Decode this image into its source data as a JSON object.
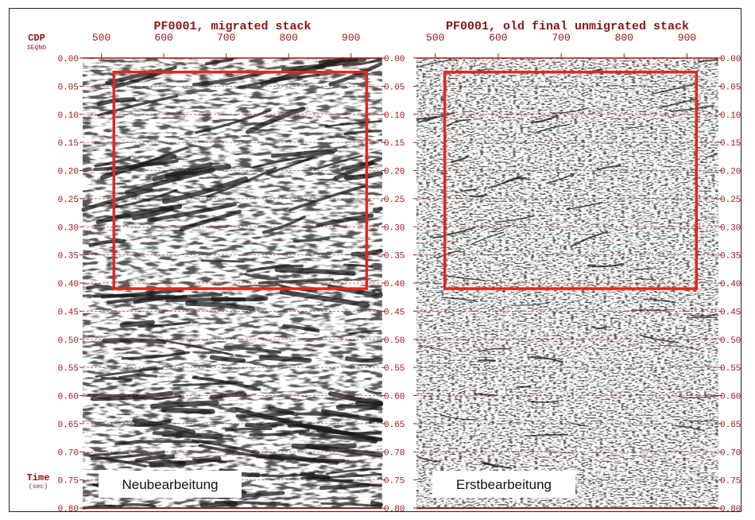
{
  "chart_data": [
    {
      "type": "heatmap",
      "title": "PF0001, migrated stack",
      "caption": "Neubearbeitung",
      "xlabel": "CDP",
      "xlabel_sub": "SEQNO",
      "ylabel": "Time",
      "ylabel_sub": "(sec)",
      "xlim": [
        470,
        950
      ],
      "ylim": [
        0.0,
        0.8
      ],
      "x_ticks": [
        "500",
        "600",
        "700",
        "800",
        "900"
      ],
      "y_ticks": [
        "0.00",
        "0.05",
        "0.10",
        "0.15",
        "0.20",
        "0.25",
        "0.30",
        "0.35",
        "0.40",
        "0.45",
        "0.50",
        "0.55",
        "0.60",
        "0.65",
        "0.70",
        "0.75",
        "0.80"
      ],
      "highlight_box": {
        "x_range": [
          520,
          925
        ],
        "y_range": [
          0.025,
          0.41
        ]
      },
      "grid": true,
      "texture": "coarse"
    },
    {
      "type": "heatmap",
      "title": "PF0001, old final unmigrated stack",
      "caption": "Erstbearbeitung",
      "xlim": [
        470,
        950
      ],
      "ylim": [
        0.0,
        0.8
      ],
      "x_ticks": [
        "500",
        "600",
        "700",
        "800",
        "900"
      ],
      "y_ticks": [
        "0.00",
        "0.05",
        "0.10",
        "0.15",
        "0.20",
        "0.25",
        "0.30",
        "0.35",
        "0.40",
        "0.45",
        "0.50",
        "0.55",
        "0.60",
        "0.65",
        "0.70",
        "0.75",
        "0.80"
      ],
      "highlight_box": {
        "x_range": [
          515,
          915
        ],
        "y_range": [
          0.025,
          0.41
        ]
      },
      "grid": true,
      "texture": "fine"
    }
  ],
  "colors": {
    "axis": "#a01818",
    "tick_label": "#a01818",
    "title": "#8a1414",
    "highlight": "#e0281e",
    "grid": "#c0392b",
    "wiggle": "#1a1a1a"
  }
}
